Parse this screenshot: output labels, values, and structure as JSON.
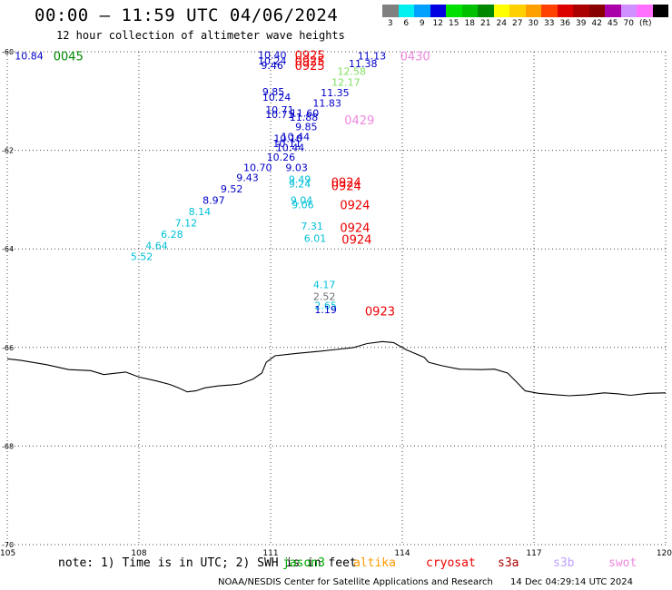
{
  "title": "00:00 – 11:59 UTC 04/06/2024",
  "subtitle": "12 hour collection of altimeter wave heights",
  "legend": {
    "colors": [
      "#808080",
      "#00f0f0",
      "#00a0ff",
      "#0000e0",
      "#00e000",
      "#00c000",
      "#008800",
      "#ffff00",
      "#ffd000",
      "#ffa000",
      "#ff4000",
      "#dd0000",
      "#aa0000",
      "#880000",
      "#aa00aa",
      "#d090ff",
      "#ff70ff",
      "#000000"
    ],
    "labels": [
      "3",
      "6",
      "9",
      "12",
      "15",
      "18",
      "21",
      "24",
      "27",
      "30",
      "33",
      "36",
      "39",
      "42",
      "45",
      "70"
    ],
    "unit": "(ft)"
  },
  "map": {
    "lon_range": [
      105,
      120
    ],
    "lat_range": [
      -60,
      -70
    ],
    "lat_labels": [
      "-60",
      "-62",
      "-64",
      "-66",
      "-68",
      "-70"
    ],
    "lon_labels": [
      "105",
      "108",
      "111",
      "114",
      "117",
      "120"
    ],
    "grid": "dotted"
  },
  "colors": {
    "dark_blue": "#0000c8",
    "cyan": "#00c0d8",
    "green": "#80e060",
    "red": "#ee0000",
    "pink": "#ee88dd",
    "gray": "#707070",
    "time_green": "#008800"
  },
  "observations": [
    {
      "text": "10.84",
      "lon": 105.17,
      "lat": -60.08,
      "c": "dark_blue"
    },
    {
      "text": "10.40",
      "lon": 110.71,
      "lat": -60.06,
      "c": "dark_blue"
    },
    {
      "text": "10.24",
      "lon": 110.71,
      "lat": -60.18,
      "c": "dark_blue"
    },
    {
      "text": "9.46",
      "lon": 110.78,
      "lat": -60.28,
      "c": "dark_blue"
    },
    {
      "text": "11.13",
      "lon": 112.98,
      "lat": -60.08,
      "c": "dark_blue"
    },
    {
      "text": "11.38",
      "lon": 112.78,
      "lat": -60.24,
      "c": "dark_blue"
    },
    {
      "text": "12.58",
      "lon": 112.52,
      "lat": -60.4,
      "c": "green"
    },
    {
      "text": "12.17",
      "lon": 112.39,
      "lat": -60.62,
      "c": "green"
    },
    {
      "text": "11.35",
      "lon": 112.14,
      "lat": -60.83,
      "c": "dark_blue"
    },
    {
      "text": "9.85",
      "lon": 110.81,
      "lat": -60.81,
      "c": "dark_blue"
    },
    {
      "text": "10.24",
      "lon": 110.81,
      "lat": -60.92,
      "c": "dark_blue"
    },
    {
      "text": "11.83",
      "lon": 111.96,
      "lat": -61.04,
      "c": "dark_blue"
    },
    {
      "text": "10.71",
      "lon": 110.88,
      "lat": -61.18,
      "c": "dark_blue"
    },
    {
      "text": "10.71",
      "lon": 110.88,
      "lat": -61.27,
      "c": "dark_blue"
    },
    {
      "text": "11.60",
      "lon": 111.45,
      "lat": -61.24,
      "c": "dark_blue"
    },
    {
      "text": "11.88",
      "lon": 111.43,
      "lat": -61.33,
      "c": "dark_blue"
    },
    {
      "text": "9.85",
      "lon": 111.56,
      "lat": -61.52,
      "c": "dark_blue"
    },
    {
      "text": "10.44",
      "lon": 111.24,
      "lat": -61.72,
      "c": "dark_blue"
    },
    {
      "text": "10.10",
      "lon": 111.07,
      "lat": -61.76,
      "c": "dark_blue"
    },
    {
      "text": "10.11",
      "lon": 111.05,
      "lat": -61.86,
      "c": "dark_blue"
    },
    {
      "text": "10.44",
      "lon": 111.12,
      "lat": -61.94,
      "c": "dark_blue"
    },
    {
      "text": "10.26",
      "lon": 110.91,
      "lat": -62.14,
      "c": "dark_blue"
    },
    {
      "text": "10.70",
      "lon": 110.38,
      "lat": -62.35,
      "c": "dark_blue"
    },
    {
      "text": "9.03",
      "lon": 111.34,
      "lat": -62.35,
      "c": "dark_blue"
    },
    {
      "text": "9.43",
      "lon": 110.22,
      "lat": -62.55,
      "c": "dark_blue"
    },
    {
      "text": "9.49",
      "lon": 111.41,
      "lat": -62.59,
      "c": "cyan"
    },
    {
      "text": "9.24",
      "lon": 111.41,
      "lat": -62.68,
      "c": "cyan"
    },
    {
      "text": "9.52",
      "lon": 109.86,
      "lat": -62.78,
      "c": "dark_blue"
    },
    {
      "text": "8.97",
      "lon": 109.45,
      "lat": -63.01,
      "c": "dark_blue"
    },
    {
      "text": "9.04",
      "lon": 111.45,
      "lat": -63.01,
      "c": "cyan"
    },
    {
      "text": "9.06",
      "lon": 111.48,
      "lat": -63.1,
      "c": "cyan"
    },
    {
      "text": "8.14",
      "lon": 109.13,
      "lat": -63.24,
      "c": "cyan"
    },
    {
      "text": "7.12",
      "lon": 108.82,
      "lat": -63.47,
      "c": "cyan"
    },
    {
      "text": "7.31",
      "lon": 111.69,
      "lat": -63.54,
      "c": "cyan"
    },
    {
      "text": "6.28",
      "lon": 108.5,
      "lat": -63.7,
      "c": "cyan"
    },
    {
      "text": "6.01",
      "lon": 111.76,
      "lat": -63.78,
      "c": "cyan"
    },
    {
      "text": "4.64",
      "lon": 108.15,
      "lat": -63.93,
      "c": "cyan"
    },
    {
      "text": "5.52",
      "lon": 107.81,
      "lat": -64.15,
      "c": "cyan"
    },
    {
      "text": "4.17",
      "lon": 111.97,
      "lat": -64.72,
      "c": "cyan"
    },
    {
      "text": "2.52",
      "lon": 111.97,
      "lat": -64.96,
      "c": "gray"
    },
    {
      "text": "2.65",
      "lon": 112.0,
      "lat": -65.15,
      "c": "cyan"
    },
    {
      "text": "1.19",
      "lon": 112.0,
      "lat": -65.23,
      "c": "dark_blue"
    }
  ],
  "times": [
    {
      "text": "0045",
      "lon": 106.05,
      "lat": -60.08,
      "c": "time_green"
    },
    {
      "text": "0925",
      "lon": 111.55,
      "lat": -60.06,
      "c": "red"
    },
    {
      "text": "0925",
      "lon": 111.55,
      "lat": -60.18,
      "c": "red"
    },
    {
      "text": "0925",
      "lon": 111.55,
      "lat": -60.28,
      "c": "red"
    },
    {
      "text": "0430",
      "lon": 113.95,
      "lat": -60.08,
      "c": "pink"
    },
    {
      "text": "0429",
      "lon": 112.68,
      "lat": -61.38,
      "c": "pink"
    },
    {
      "text": "0924",
      "lon": 112.38,
      "lat": -62.64,
      "c": "red"
    },
    {
      "text": "0924",
      "lon": 112.38,
      "lat": -62.72,
      "c": "red"
    },
    {
      "text": "0924",
      "lon": 112.58,
      "lat": -63.1,
      "c": "red"
    },
    {
      "text": "0924",
      "lon": 112.58,
      "lat": -63.56,
      "c": "red"
    },
    {
      "text": "0924",
      "lon": 112.62,
      "lat": -63.8,
      "c": "red"
    },
    {
      "text": "0923",
      "lon": 113.15,
      "lat": -65.26,
      "c": "red"
    }
  ],
  "coastline": [
    [
      105,
      -66.23
    ],
    [
      105.3,
      -66.26
    ],
    [
      105.9,
      -66.35
    ],
    [
      106.4,
      -66.45
    ],
    [
      106.9,
      -66.47
    ],
    [
      107.2,
      -66.55
    ],
    [
      107.7,
      -66.5
    ],
    [
      108.0,
      -66.6
    ],
    [
      108.4,
      -66.68
    ],
    [
      108.7,
      -66.75
    ],
    [
      108.9,
      -66.82
    ],
    [
      109.1,
      -66.9
    ],
    [
      109.3,
      -66.88
    ],
    [
      109.5,
      -66.82
    ],
    [
      109.8,
      -66.78
    ],
    [
      110.1,
      -66.76
    ],
    [
      110.3,
      -66.74
    ],
    [
      110.6,
      -66.64
    ],
    [
      110.8,
      -66.52
    ],
    [
      110.9,
      -66.3
    ],
    [
      111.1,
      -66.17
    ],
    [
      111.6,
      -66.12
    ],
    [
      112.1,
      -66.08
    ],
    [
      112.5,
      -66.04
    ],
    [
      112.9,
      -66.0
    ],
    [
      113.2,
      -65.92
    ],
    [
      113.55,
      -65.88
    ],
    [
      113.8,
      -65.9
    ],
    [
      114.1,
      -66.05
    ],
    [
      114.5,
      -66.2
    ],
    [
      114.6,
      -66.3
    ],
    [
      114.9,
      -66.37
    ],
    [
      115.3,
      -66.44
    ],
    [
      115.8,
      -66.45
    ],
    [
      116.1,
      -66.44
    ],
    [
      116.4,
      -66.52
    ],
    [
      116.6,
      -66.7
    ],
    [
      116.8,
      -66.88
    ],
    [
      117.1,
      -66.93
    ],
    [
      117.5,
      -66.96
    ],
    [
      117.8,
      -66.98
    ],
    [
      118.2,
      -66.96
    ],
    [
      118.6,
      -66.92
    ],
    [
      118.9,
      -66.94
    ],
    [
      119.2,
      -66.97
    ],
    [
      119.6,
      -66.93
    ],
    [
      120.0,
      -66.92
    ]
  ],
  "note": {
    "prefix": "note: 1) Time is in UTC; 2) SWH is in feet",
    "sources": [
      {
        "name": "jason3",
        "color": "#00aa00"
      },
      {
        "name": "altika",
        "color": "#ff9900"
      },
      {
        "name": "cryosat",
        "color": "#ee0000"
      },
      {
        "name": "s3a",
        "color": "#aa0000"
      },
      {
        "name": "s3b",
        "color": "#c0a0ff"
      },
      {
        "name": "swot",
        "color": "#ee88dd"
      }
    ]
  },
  "footer": {
    "credit": "NOAA/NESDIS Center for Satellite Applications and Research",
    "timestamp": "14 Dec 04:29:14 UTC 2024"
  }
}
